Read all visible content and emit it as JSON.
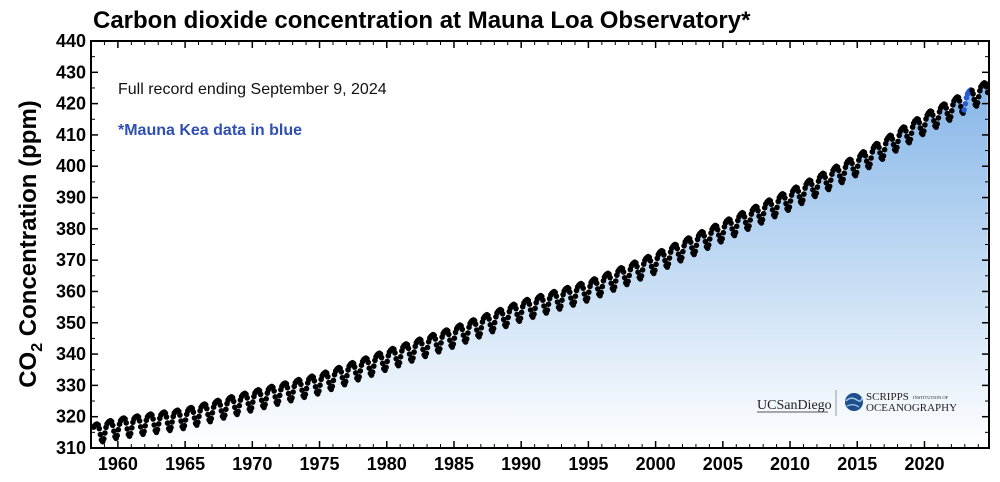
{
  "chart_data": {
    "type": "scatter",
    "title": "Carbon dioxide concentration at Mauna Loa Observatory*",
    "ylabel": "CO",
    "ylabel_sub": "2",
    "ylabel_suffix": " Concentration (ppm)",
    "xlabel": "",
    "xlim": [
      1958.0,
      2024.8
    ],
    "ylim": [
      310,
      440
    ],
    "yticks": [
      "310",
      "320",
      "330",
      "340",
      "350",
      "360",
      "370",
      "380",
      "390",
      "400",
      "410",
      "420",
      "430",
      "440"
    ],
    "xticks": [
      "1960",
      "1965",
      "1970",
      "1975",
      "1980",
      "1985",
      "1990",
      "1995",
      "2000",
      "2005",
      "2010",
      "2015",
      "2020"
    ],
    "annotations": {
      "record": "Full record ending September 9, 2024",
      "mauna_kea": "*Mauna Kea data in blue"
    },
    "area_fill": {
      "top_color": "#86b6e8",
      "bottom_color": "#ffffff"
    },
    "series": [
      {
        "marker_color": "#000000",
        "seasonal_amplitude_ppm": 3.0,
        "points_per_year": 12,
        "trend_anchor_years": [
          1958.2,
          1960,
          1965,
          1970,
          1975,
          1980,
          1985,
          1990,
          1995,
          2000,
          2005,
          2010,
          2015,
          2020,
          2024.7
        ],
        "trend_anchor_ppm": [
          315.0,
          316.9,
          320.0,
          325.7,
          331.1,
          338.7,
          346.1,
          354.4,
          360.8,
          369.7,
          379.8,
          389.9,
          401.0,
          414.2,
          424.8
        ]
      }
    ],
    "mauna_kea_segment": {
      "color": "#2a5bd7",
      "years": [
        2022.9,
        2023.5
      ]
    }
  },
  "colors": {
    "blue_note": "#2f4fb5",
    "mauna_kea_dot": "#2a5bd7",
    "scripps_globe": "#1f4e8c"
  },
  "logos": {
    "ucsd": "UCSanDiego",
    "scripps_main": "SCRIPPS",
    "scripps_small": "INSTITUTION OF",
    "scripps_sub": "OCEANOGRAPHY"
  }
}
